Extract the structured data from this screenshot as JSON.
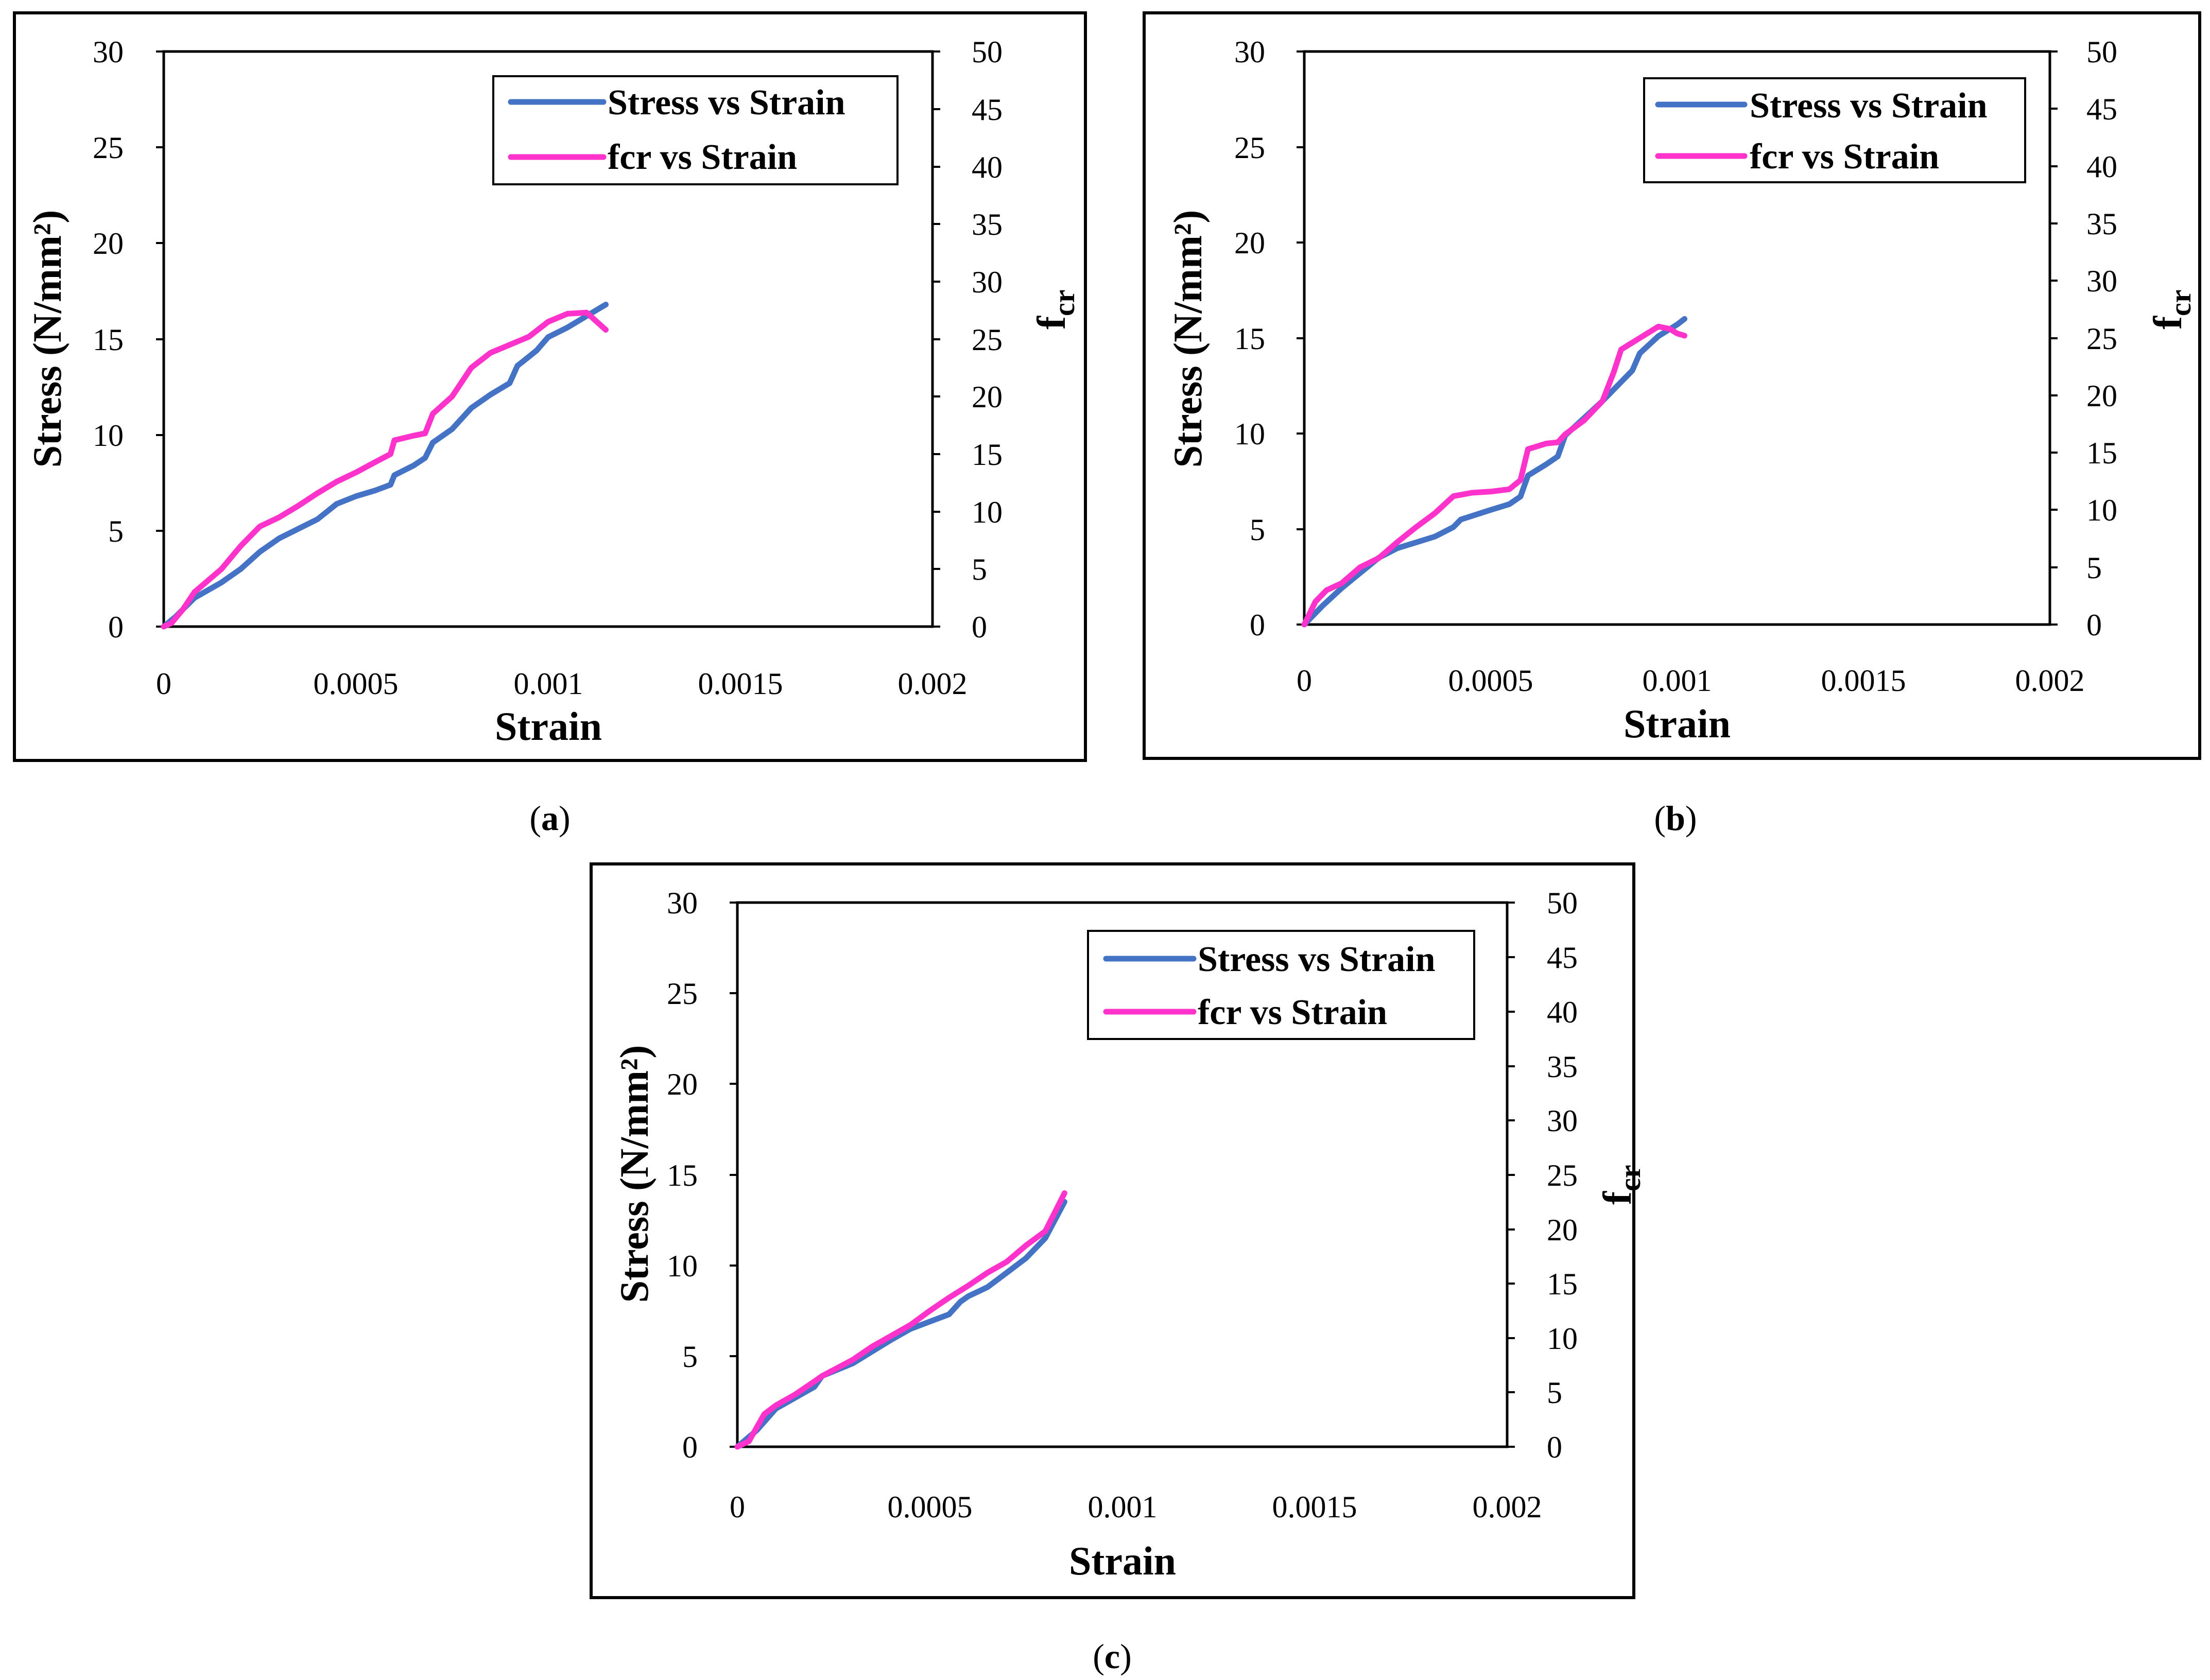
{
  "figure": {
    "colors": {
      "stress": "#4472C4",
      "fcr": "#FF33CC"
    }
  },
  "chart_data": [
    {
      "id": "a",
      "caption": "a",
      "type": "line",
      "xlabel": "Strain",
      "ylabel": "Stress (N/mm²)",
      "y2label_main": "f",
      "y2label_sub": "cr",
      "xlim": [
        0,
        0.002
      ],
      "ylim": [
        0,
        30
      ],
      "y2lim": [
        0,
        50
      ],
      "xticks": [
        "0",
        "0.0005",
        "0.001",
        "0.0015",
        "0.002"
      ],
      "yticks": [
        "0",
        "5",
        "10",
        "15",
        "20",
        "25",
        "30"
      ],
      "y2ticks": [
        "0",
        "5",
        "10",
        "15",
        "20",
        "25",
        "30",
        "35",
        "40",
        "45",
        "50"
      ],
      "legend": "top-right",
      "series": [
        {
          "name": "Stress vs Strain",
          "axis": "left",
          "points": [
            [
              0,
              0
            ],
            [
              3e-05,
              0.5
            ],
            [
              8e-05,
              1.5
            ],
            [
              0.00015,
              2.3
            ],
            [
              0.0002,
              3.0
            ],
            [
              0.00025,
              3.9
            ],
            [
              0.0003,
              4.6
            ],
            [
              0.0004,
              5.6
            ],
            [
              0.00045,
              6.4
            ],
            [
              0.0005,
              6.8
            ],
            [
              0.00055,
              7.1
            ],
            [
              0.00059,
              7.4
            ],
            [
              0.0006,
              7.9
            ],
            [
              0.00065,
              8.4
            ],
            [
              0.00068,
              8.8
            ],
            [
              0.0007,
              9.6
            ],
            [
              0.00075,
              10.3
            ],
            [
              0.0008,
              11.4
            ],
            [
              0.00085,
              12.1
            ],
            [
              0.0009,
              12.7
            ],
            [
              0.00092,
              13.6
            ],
            [
              0.00097,
              14.4
            ],
            [
              0.001,
              15.1
            ],
            [
              0.00105,
              15.6
            ],
            [
              0.0011,
              16.2
            ],
            [
              0.00115,
              16.8
            ]
          ]
        },
        {
          "name": "fcr vs Strain",
          "axis": "right",
          "points": [
            [
              0,
              0
            ],
            [
              2e-05,
              0.3
            ],
            [
              5e-05,
              1.5
            ],
            [
              8e-05,
              3.0
            ],
            [
              0.00015,
              5.0
            ],
            [
              0.0002,
              7.0
            ],
            [
              0.00025,
              8.7
            ],
            [
              0.0003,
              9.5
            ],
            [
              0.00035,
              10.5
            ],
            [
              0.0004,
              11.6
            ],
            [
              0.00045,
              12.6
            ],
            [
              0.0005,
              13.4
            ],
            [
              0.00055,
              14.3
            ],
            [
              0.00059,
              15.0
            ],
            [
              0.0006,
              16.2
            ],
            [
              0.00065,
              16.6
            ],
            [
              0.00068,
              16.8
            ],
            [
              0.0007,
              18.5
            ],
            [
              0.00075,
              20.0
            ],
            [
              0.0008,
              22.5
            ],
            [
              0.00085,
              23.8
            ],
            [
              0.0009,
              24.5
            ],
            [
              0.00095,
              25.2
            ],
            [
              0.001,
              26.5
            ],
            [
              0.00105,
              27.2
            ],
            [
              0.0011,
              27.3
            ],
            [
              0.00115,
              25.8
            ]
          ]
        }
      ]
    },
    {
      "id": "b",
      "caption": "b",
      "type": "line",
      "xlabel": "Strain",
      "ylabel": "Stress (N/mm²)",
      "y2label_main": "f",
      "y2label_sub": "cr",
      "xlim": [
        0,
        0.002
      ],
      "ylim": [
        0,
        30
      ],
      "y2lim": [
        0,
        50
      ],
      "xticks": [
        "0",
        "0.0005",
        "0.001",
        "0.0015",
        "0.002"
      ],
      "yticks": [
        "0",
        "5",
        "10",
        "15",
        "20",
        "25",
        "30"
      ],
      "y2ticks": [
        "0",
        "5",
        "10",
        "15",
        "20",
        "25",
        "30",
        "35",
        "40",
        "45",
        "50"
      ],
      "legend": "top-right",
      "series": [
        {
          "name": "Stress vs Strain",
          "axis": "left",
          "points": [
            [
              0,
              0
            ],
            [
              5e-05,
              1.0
            ],
            [
              0.0001,
              1.9
            ],
            [
              0.00015,
              2.7
            ],
            [
              0.0002,
              3.5
            ],
            [
              0.00025,
              4.0
            ],
            [
              0.0003,
              4.3
            ],
            [
              0.00035,
              4.6
            ],
            [
              0.0004,
              5.1
            ],
            [
              0.00042,
              5.5
            ],
            [
              0.0005,
              6.0
            ],
            [
              0.00055,
              6.3
            ],
            [
              0.00058,
              6.7
            ],
            [
              0.0006,
              7.8
            ],
            [
              0.00065,
              8.4
            ],
            [
              0.00068,
              8.8
            ],
            [
              0.0007,
              9.9
            ],
            [
              0.00075,
              10.8
            ],
            [
              0.0008,
              11.7
            ],
            [
              0.00085,
              12.7
            ],
            [
              0.00088,
              13.3
            ],
            [
              0.0009,
              14.2
            ],
            [
              0.00095,
              15.1
            ],
            [
              0.001,
              15.7
            ],
            [
              0.00102,
              16.0
            ]
          ]
        },
        {
          "name": "fcr vs Strain",
          "axis": "right",
          "points": [
            [
              0,
              0
            ],
            [
              3e-05,
              2.0
            ],
            [
              6e-05,
              3.0
            ],
            [
              0.0001,
              3.6
            ],
            [
              0.00015,
              5.0
            ],
            [
              0.0002,
              5.8
            ],
            [
              0.00025,
              7.2
            ],
            [
              0.0003,
              8.5
            ],
            [
              0.00035,
              9.7
            ],
            [
              0.0004,
              11.2
            ],
            [
              0.00045,
              11.5
            ],
            [
              0.0005,
              11.6
            ],
            [
              0.00055,
              11.8
            ],
            [
              0.00058,
              12.6
            ],
            [
              0.0006,
              15.3
            ],
            [
              0.00065,
              15.8
            ],
            [
              0.00068,
              15.9
            ],
            [
              0.0007,
              16.6
            ],
            [
              0.00075,
              17.8
            ],
            [
              0.0008,
              19.5
            ],
            [
              0.00083,
              22.0
            ],
            [
              0.00085,
              24.0
            ],
            [
              0.0009,
              25.0
            ],
            [
              0.00095,
              26.0
            ],
            [
              0.00098,
              25.8
            ],
            [
              0.001,
              25.4
            ],
            [
              0.00102,
              25.2
            ]
          ]
        }
      ]
    },
    {
      "id": "c",
      "caption": "c",
      "type": "line",
      "xlabel": "Strain",
      "ylabel": "Stress (N/mm²)",
      "y2label_main": "f",
      "y2label_sub": "cr",
      "xlim": [
        0,
        0.002
      ],
      "ylim": [
        0,
        30
      ],
      "y2lim": [
        0,
        50
      ],
      "xticks": [
        "0",
        "0.0005",
        "0.001",
        "0.0015",
        "0.002"
      ],
      "yticks": [
        "0",
        "5",
        "10",
        "15",
        "20",
        "25",
        "30"
      ],
      "y2ticks": [
        "0",
        "5",
        "10",
        "15",
        "20",
        "25",
        "30",
        "35",
        "40",
        "45",
        "50"
      ],
      "legend": "top-right",
      "series": [
        {
          "name": "Stress vs Strain",
          "axis": "left",
          "points": [
            [
              0,
              0
            ],
            [
              5e-05,
              0.9
            ],
            [
              0.0001,
              2.1
            ],
            [
              0.00015,
              2.7
            ],
            [
              0.0002,
              3.3
            ],
            [
              0.00022,
              3.9
            ],
            [
              0.0003,
              4.6
            ],
            [
              0.0004,
              5.9
            ],
            [
              0.00045,
              6.5
            ],
            [
              0.0005,
              6.9
            ],
            [
              0.00055,
              7.3
            ],
            [
              0.00058,
              8.0
            ],
            [
              0.0006,
              8.3
            ],
            [
              0.00065,
              8.8
            ],
            [
              0.0007,
              9.6
            ],
            [
              0.00075,
              10.4
            ],
            [
              0.0008,
              11.5
            ],
            [
              0.00085,
              13.5
            ]
          ]
        },
        {
          "name": "fcr vs Strain",
          "axis": "right",
          "points": [
            [
              0,
              0
            ],
            [
              3e-05,
              0.5
            ],
            [
              7e-05,
              3.0
            ],
            [
              0.0001,
              3.8
            ],
            [
              0.00015,
              4.8
            ],
            [
              0.0002,
              6.0
            ],
            [
              0.00022,
              6.5
            ],
            [
              0.0003,
              8.0
            ],
            [
              0.00035,
              9.2
            ],
            [
              0.0004,
              10.2
            ],
            [
              0.00045,
              11.2
            ],
            [
              0.0005,
              12.5
            ],
            [
              0.00055,
              13.7
            ],
            [
              0.0006,
              14.8
            ],
            [
              0.00065,
              16.0
            ],
            [
              0.0007,
              17.0
            ],
            [
              0.00075,
              18.5
            ],
            [
              0.0008,
              19.8
            ],
            [
              0.00085,
              23.3
            ]
          ]
        }
      ]
    }
  ]
}
